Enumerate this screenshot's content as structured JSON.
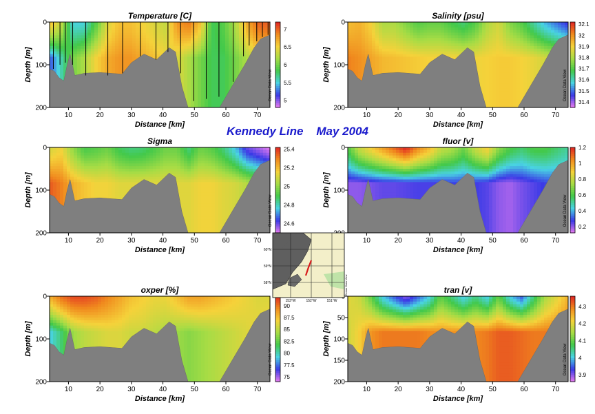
{
  "page_title": "Kennedy Line    May 2004",
  "colorbar_credit": "Ocean Data View",
  "bathymetry_color": "#7f7f7f",
  "colormap": [
    "#e87cf0",
    "#3a3ae6",
    "#49d3e3",
    "#43c94a",
    "#a7dc45",
    "#f5d23a",
    "#f08a1e",
    "#e02424"
  ],
  "inset_map": {
    "lat_labels": [
      "60°N",
      "59°N",
      "58°N"
    ],
    "lon_labels": [
      "153°W",
      "152°W",
      "151°W"
    ],
    "credit": "Ocean Data View",
    "land_color": "#f3efc9",
    "sea_color": "#5f5f5f",
    "track_color": "#d81b1b"
  },
  "chart_data": [
    {
      "type": "heatmap",
      "title": "Temperature [C]",
      "xlabel": "Distance [km]",
      "ylabel": "Depth [m]",
      "xlim": [
        4,
        74
      ],
      "ylim": [
        200,
        0
      ],
      "xticks": [
        "10",
        "20",
        "30",
        "40",
        "50",
        "60",
        "70"
      ],
      "yticks": [
        "0",
        "100",
        "200"
      ],
      "colorbar": {
        "min": 4.8,
        "max": 7.2,
        "ticks": [
          "7",
          "6.5",
          "6",
          "5.5",
          "5"
        ]
      },
      "surface": [
        6.6,
        6.3,
        5.5,
        5.5,
        5.9,
        6.4,
        6.6,
        6.6,
        6.5,
        6.4,
        6.3,
        6.8,
        6.9,
        6.6,
        5.8,
        5.9,
        6.2,
        6.7,
        7.0,
        7.0
      ],
      "deep": [
        5.2,
        5.6,
        6.0,
        6.2,
        6.5,
        6.7,
        6.8,
        6.8,
        6.7,
        6.6,
        6.5,
        6.4,
        6.2,
        6.0,
        5.8,
        5.8,
        6.0,
        6.2,
        6.4,
        6.5
      ],
      "station_casts": [
        [
          5.2,
          110
        ],
        [
          7.3,
          100
        ],
        [
          9,
          95
        ],
        [
          11.3,
          100
        ],
        [
          15.5,
          125
        ],
        [
          22.5,
          125
        ],
        [
          27.2,
          120
        ],
        [
          32.8,
          80
        ],
        [
          37.8,
          88
        ],
        [
          41.6,
          70
        ],
        [
          45.6,
          120
        ],
        [
          49.8,
          185
        ],
        [
          53.8,
          180
        ],
        [
          57.8,
          175
        ],
        [
          62.3,
          140
        ],
        [
          65.6,
          80
        ],
        [
          67.4,
          55
        ],
        [
          69.8,
          45
        ],
        [
          71.6,
          35
        ],
        [
          73.4,
          30
        ]
      ]
    },
    {
      "type": "heatmap",
      "title": "Salinity [psu]",
      "xlabel": "Distance [km]",
      "ylabel": "Depth [m]",
      "xlim": [
        4,
        74
      ],
      "ylim": [
        200,
        0
      ],
      "xticks": [
        "10",
        "20",
        "30",
        "40",
        "50",
        "60",
        "70"
      ],
      "yticks": [
        "0",
        "100",
        "200"
      ],
      "colorbar": {
        "min": 31.35,
        "max": 32.12,
        "ticks": [
          "32.1",
          "32",
          "31.9",
          "31.8",
          "31.7",
          "31.6",
          "31.5",
          "31.4"
        ]
      },
      "surface": [
        31.93,
        31.95,
        31.9,
        31.8,
        31.8,
        31.75,
        31.7,
        31.72,
        31.72,
        31.68,
        31.65,
        31.7,
        31.8,
        31.85,
        31.75,
        31.7,
        31.62,
        31.55,
        31.5,
        31.45
      ],
      "deep": [
        32.02,
        32.0,
        31.97,
        31.94,
        31.93,
        31.92,
        31.91,
        31.9,
        31.9,
        31.9,
        31.89,
        31.89,
        31.9,
        31.91,
        31.91,
        31.9,
        31.88,
        31.85,
        31.82,
        31.8
      ],
      "station_casts": []
    },
    {
      "type": "heatmap",
      "title": "Sigma",
      "xlabel": "Distance [km]",
      "ylabel": "Depth [m]",
      "xlim": [
        4,
        74
      ],
      "ylim": [
        200,
        0
      ],
      "xticks": [
        "10",
        "20",
        "30",
        "40",
        "50",
        "60",
        "70"
      ],
      "yticks": [
        "0",
        "100",
        "200"
      ],
      "colorbar": {
        "min": 24.5,
        "max": 25.42,
        "ticks": [
          "25.4",
          "25.2",
          "25",
          "24.8",
          "24.6"
        ]
      },
      "surface": [
        25.1,
        25.15,
        25.0,
        24.9,
        24.92,
        24.95,
        24.88,
        24.85,
        24.86,
        24.9,
        24.95,
        24.95,
        24.85,
        24.95,
        24.92,
        24.85,
        24.75,
        24.6,
        24.55,
        24.5
      ],
      "deep": [
        25.35,
        25.3,
        25.22,
        25.18,
        25.15,
        25.15,
        25.12,
        25.12,
        25.12,
        25.12,
        25.12,
        25.12,
        25.12,
        25.15,
        25.15,
        25.12,
        25.1,
        25.05,
        25.0,
        24.95
      ],
      "station_casts": []
    },
    {
      "type": "heatmap",
      "title": "fluor [v]",
      "xlabel": "Distance [km]",
      "ylabel": "Depth [m]",
      "xlim": [
        4,
        74
      ],
      "ylim": [
        200,
        0
      ],
      "xticks": [
        "10",
        "20",
        "30",
        "40",
        "50",
        "60",
        "70"
      ],
      "yticks": [
        "0",
        "100",
        "200"
      ],
      "colorbar": {
        "min": 0.12,
        "max": 1.2,
        "ticks": [
          "1.2",
          "1",
          "0.8",
          "0.6",
          "0.4",
          "0.2"
        ]
      },
      "surface": [
        0.6,
        0.8,
        0.9,
        1.0,
        1.1,
        1.2,
        1.05,
        0.95,
        0.8,
        0.75,
        0.65,
        0.8,
        0.9,
        0.7,
        0.6,
        0.55,
        0.6,
        0.6,
        0.55,
        0.5
      ],
      "deep": [
        0.2,
        0.2,
        0.22,
        0.24,
        0.24,
        0.25,
        0.26,
        0.26,
        0.27,
        0.28,
        0.28,
        0.27,
        0.25,
        0.2,
        0.18,
        0.22,
        0.25,
        0.28,
        0.3,
        0.32
      ],
      "station_casts": []
    },
    {
      "type": "heatmap",
      "title": "oxper [%]",
      "xlabel": "Distance [km]",
      "ylabel": "Depth [m]",
      "xlim": [
        4,
        74
      ],
      "ylim": [
        200,
        0
      ],
      "xticks": [
        "10",
        "20",
        "30",
        "40",
        "50",
        "60",
        "70"
      ],
      "yticks": [
        "0",
        "100",
        "200"
      ],
      "colorbar": {
        "min": 74,
        "max": 92,
        "ticks": [
          "90",
          "87.5",
          "85",
          "82.5",
          "80",
          "77.5",
          "75"
        ]
      },
      "surface": [
        88,
        90,
        91,
        91,
        90.5,
        89.5,
        88.5,
        87.5,
        87,
        86.5,
        86.5,
        87.5,
        88.5,
        88.5,
        88,
        87.5,
        87,
        86.5,
        86,
        86
      ],
      "deep": [
        79,
        81,
        84,
        85,
        85.5,
        86,
        86,
        85.5,
        85.5,
        85,
        84.5,
        84,
        83.5,
        84,
        84.5,
        85,
        85.5,
        86,
        86.5,
        87
      ],
      "station_casts": []
    },
    {
      "type": "heatmap",
      "title": "tran [v]",
      "xlabel": "Distance [km]",
      "ylabel": "Depth [m]",
      "xlim": [
        4,
        74
      ],
      "ylim": [
        200,
        0
      ],
      "xticks": [
        "10",
        "20",
        "30",
        "40",
        "50",
        "60",
        "70"
      ],
      "yticks": [
        "0",
        "50",
        "100",
        "150",
        "200"
      ],
      "colorbar": {
        "min": 3.86,
        "max": 4.36,
        "ticks": [
          "4.3",
          "4.2",
          "4.1",
          "4",
          "3.9"
        ]
      },
      "surface": [
        4.2,
        4.18,
        4.1,
        4.0,
        3.95,
        3.9,
        3.95,
        4.0,
        4.1,
        4.05,
        4.0,
        4.05,
        4.0,
        4.1,
        4.0,
        3.95,
        4.05,
        4.15,
        4.2,
        4.25
      ],
      "deep": [
        4.18,
        4.22,
        4.28,
        4.3,
        4.3,
        4.3,
        4.3,
        4.29,
        4.28,
        4.28,
        4.28,
        4.29,
        4.3,
        4.32,
        4.32,
        4.31,
        4.3,
        4.3,
        4.3,
        4.3
      ],
      "station_casts": []
    }
  ]
}
